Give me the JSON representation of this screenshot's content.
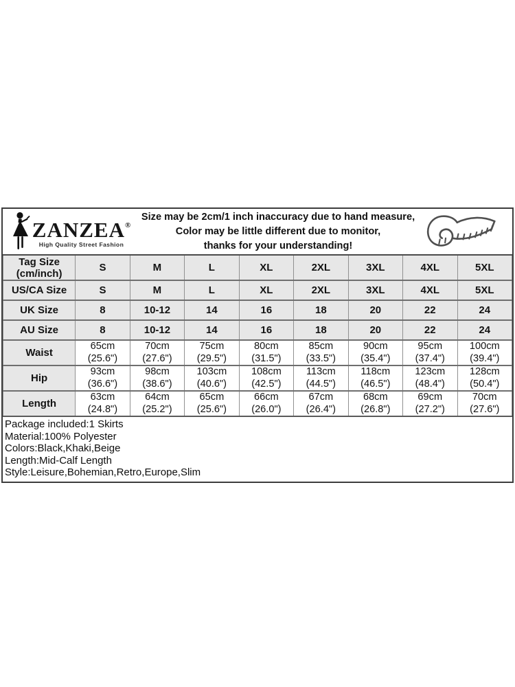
{
  "brand": {
    "logo_text": "ZANZEA",
    "registered_mark": "®",
    "tagline": "High Quality Street Fashion"
  },
  "notice": {
    "line1": "Size may be 2cm/1 inch inaccuracy due to hand measure,",
    "line2": "Color may be little different due to monitor,",
    "line3": "thanks for your understanding!"
  },
  "size_table": {
    "size_rows": [
      {
        "label_line1": "Tag Size",
        "label_line2": "(cm/inch)",
        "values": [
          "S",
          "M",
          "L",
          "XL",
          "2XL",
          "3XL",
          "4XL",
          "5XL"
        ]
      },
      {
        "label_line1": "US/CA Size",
        "label_line2": "",
        "values": [
          "S",
          "M",
          "L",
          "XL",
          "2XL",
          "3XL",
          "4XL",
          "5XL"
        ]
      },
      {
        "label_line1": "UK Size",
        "label_line2": "",
        "values": [
          "8",
          "10-12",
          "14",
          "16",
          "18",
          "20",
          "22",
          "24"
        ]
      },
      {
        "label_line1": "AU Size",
        "label_line2": "",
        "values": [
          "8",
          "10-12",
          "14",
          "16",
          "18",
          "20",
          "22",
          "24"
        ]
      }
    ],
    "measure_rows": [
      {
        "label": "Waist",
        "values": [
          [
            "65cm",
            "(25.6\")"
          ],
          [
            "70cm",
            "(27.6\")"
          ],
          [
            "75cm",
            "(29.5\")"
          ],
          [
            "80cm",
            "(31.5\")"
          ],
          [
            "85cm",
            "(33.5\")"
          ],
          [
            "90cm",
            "(35.4\")"
          ],
          [
            "95cm",
            "(37.4\")"
          ],
          [
            "100cm",
            "(39.4\")"
          ]
        ]
      },
      {
        "label": "Hip",
        "values": [
          [
            "93cm",
            "(36.6\")"
          ],
          [
            "98cm",
            "(38.6\")"
          ],
          [
            "103cm",
            "(40.6\")"
          ],
          [
            "108cm",
            "(42.5\")"
          ],
          [
            "113cm",
            "(44.5\")"
          ],
          [
            "118cm",
            "(46.5\")"
          ],
          [
            "123cm",
            "(48.4\")"
          ],
          [
            "128cm",
            "(50.4\")"
          ]
        ]
      },
      {
        "label": "Length",
        "values": [
          [
            "63cm",
            "(24.8\")"
          ],
          [
            "64cm",
            "(25.2\")"
          ],
          [
            "65cm",
            "(25.6\")"
          ],
          [
            "66cm",
            "(26.0\")"
          ],
          [
            "67cm",
            "(26.4\")"
          ],
          [
            "68cm",
            "(26.8\")"
          ],
          [
            "69cm",
            "(27.2\")"
          ],
          [
            "70cm",
            "(27.6\")"
          ]
        ]
      }
    ]
  },
  "details": [
    "Package included:1 Skirts",
    "Material:100% Polyester",
    "Colors:Black,Khaki,Beige",
    "Length:Mid-Calf Length",
    "Style:Leisure,Bohemian,Retro,Europe,Slim"
  ],
  "colors": {
    "cell_gray": "#e7e7e7",
    "border_outer": "#3c3c3c",
    "border_inner": "#909090",
    "text": "#141414"
  },
  "icons": {
    "logo_figure": "woman-silhouette-icon",
    "tape": "measuring-tape-icon"
  }
}
